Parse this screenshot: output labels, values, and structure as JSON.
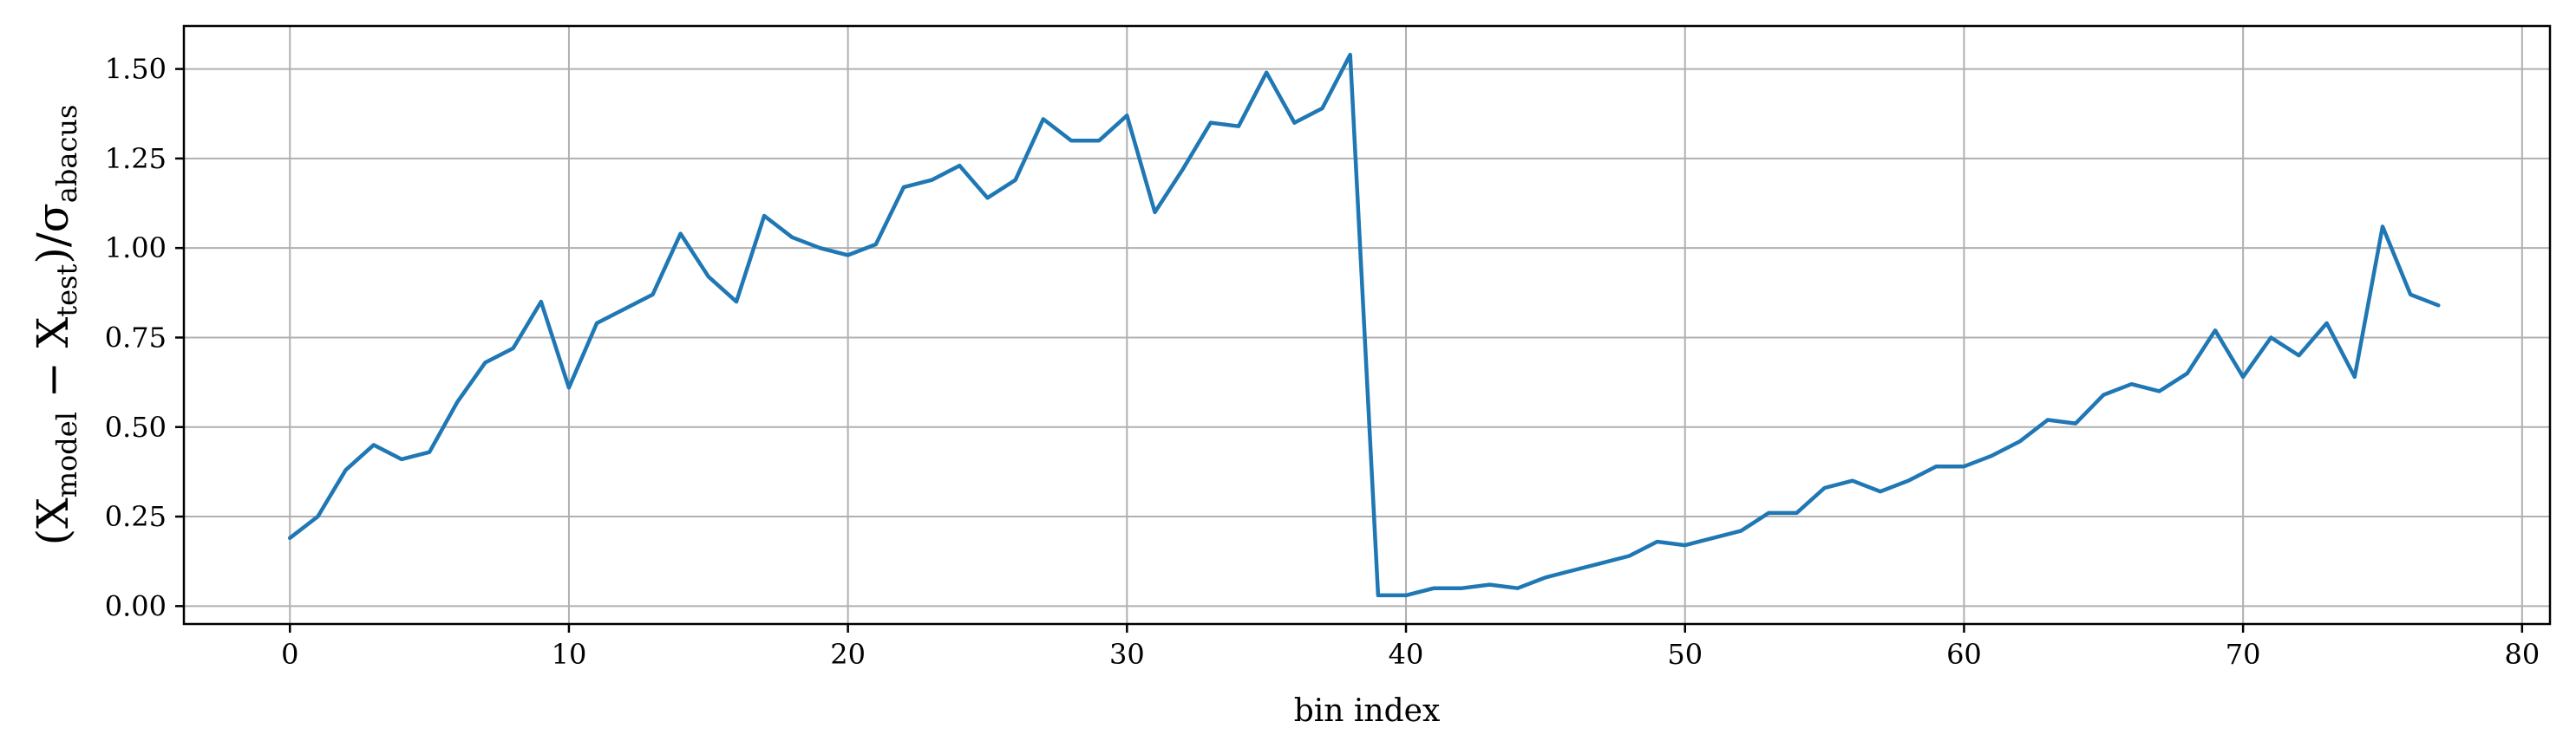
{
  "chart_data": {
    "type": "line",
    "xlabel": "bin index",
    "ylabel": {
      "open": "(X",
      "sub1": "model",
      "minus": " − X",
      "sub2": "test",
      "close": ")/σ",
      "sub3": "abacus"
    },
    "xlim": [
      -3.8,
      81
    ],
    "ylim": [
      -0.05,
      1.62
    ],
    "xticks": [
      0,
      10,
      20,
      30,
      40,
      50,
      60,
      70,
      80
    ],
    "xtick_labels": [
      "0",
      "10",
      "20",
      "30",
      "40",
      "50",
      "60",
      "70",
      "80"
    ],
    "yticks": [
      0.0,
      0.25,
      0.5,
      0.75,
      1.0,
      1.25,
      1.5
    ],
    "ytick_labels": [
      "0.00",
      "0.25",
      "0.50",
      "0.75",
      "1.00",
      "1.25",
      "1.50"
    ],
    "grid": true,
    "series": [
      {
        "color": "#1f77b4",
        "x": [
          0,
          1,
          2,
          3,
          4,
          5,
          6,
          7,
          8,
          9,
          10,
          11,
          12,
          13,
          14,
          15,
          16,
          17,
          18,
          19,
          20,
          21,
          22,
          23,
          24,
          25,
          26,
          27,
          28,
          29,
          30,
          31,
          32,
          33,
          34,
          35,
          36,
          37,
          38,
          39,
          40,
          41,
          42,
          43,
          44,
          45,
          46,
          47,
          48,
          49,
          50,
          51,
          52,
          53,
          54,
          55,
          56,
          57,
          58,
          59,
          60,
          61,
          62,
          63,
          64,
          65,
          66,
          67,
          68,
          69,
          70,
          71,
          72,
          73,
          74,
          75,
          76,
          77
        ],
        "values": [
          0.19,
          0.25,
          0.38,
          0.45,
          0.41,
          0.43,
          0.57,
          0.68,
          0.72,
          0.85,
          0.61,
          0.79,
          0.83,
          0.87,
          1.04,
          0.92,
          0.85,
          1.09,
          1.03,
          1.0,
          0.98,
          1.01,
          1.17,
          1.19,
          1.23,
          1.14,
          1.19,
          1.36,
          1.3,
          1.3,
          1.37,
          1.1,
          1.22,
          1.35,
          1.34,
          1.49,
          1.35,
          1.39,
          1.54,
          0.03,
          0.03,
          0.05,
          0.05,
          0.06,
          0.05,
          0.08,
          0.1,
          0.12,
          0.14,
          0.18,
          0.17,
          0.19,
          0.21,
          0.26,
          0.26,
          0.33,
          0.35,
          0.32,
          0.35,
          0.39,
          0.39,
          0.42,
          0.46,
          0.52,
          0.51,
          0.59,
          0.62,
          0.6,
          0.65,
          0.77,
          0.64,
          0.75,
          0.7,
          0.79,
          0.64,
          1.06,
          0.87,
          0.84
        ]
      }
    ]
  }
}
